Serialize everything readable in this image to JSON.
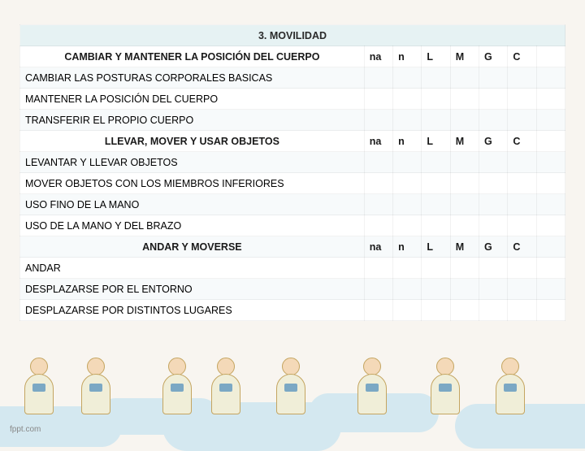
{
  "table": {
    "title": "3. MOVILIDAD",
    "sections": [
      {
        "header": "CAMBIAR Y MANTENER LA POSICIÓN DEL CUERPO",
        "cols": [
          "na",
          "n",
          "L",
          "M",
          "G",
          "C"
        ],
        "rows": [
          "CAMBIAR LAS POSTURAS CORPORALES BASICAS",
          "MANTENER LA POSICIÓN DEL CUERPO",
          "TRANSFERIR EL PROPIO CUERPO"
        ]
      },
      {
        "header": "LLEVAR, MOVER Y USAR OBJETOS",
        "cols": [
          "na",
          "n",
          "L",
          "M",
          "G",
          "C"
        ],
        "rows": [
          "LEVANTAR Y LLEVAR OBJETOS",
          "MOVER OBJETOS CON LOS MIEMBROS INFERIORES",
          "USO FINO DE LA MANO",
          "USO DE LA MANO Y DEL BRAZO"
        ]
      },
      {
        "header": "ANDAR Y MOVERSE",
        "cols": [
          "na",
          "n",
          "L",
          "M",
          "G",
          "C"
        ],
        "rows": [
          "ANDAR",
          "DESPLAZARSE POR EL ENTORNO",
          "DESPLAZARSE POR DISTINTOS LUGARES"
        ]
      }
    ]
  },
  "footer_link": "fppt.com",
  "colors": {
    "title_bg": "#e6f2f3",
    "cloud": "#d4e8f0",
    "body_bg": "#f8f5f0"
  }
}
